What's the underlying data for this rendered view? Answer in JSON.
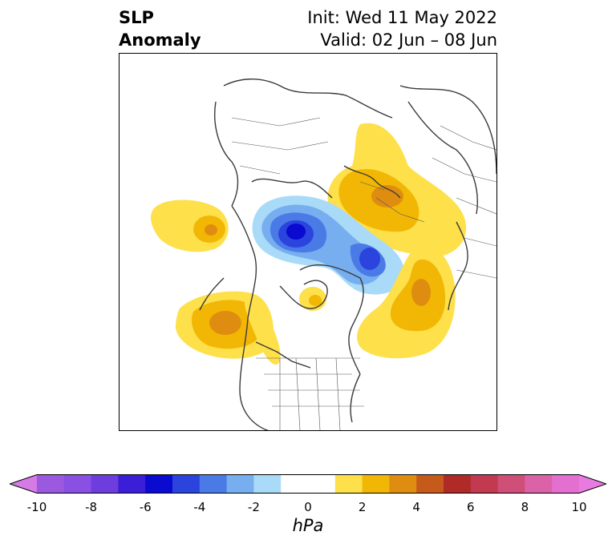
{
  "title": {
    "left_line1": "SLP",
    "left_line2": "Anomaly",
    "right_line1": "Init: Wed 11 May 2022",
    "right_line2": "Valid: 02 Jun – 08 Jun"
  },
  "colorbar": {
    "unit": "hPa",
    "ticks": [
      "-10",
      "-8",
      "-6",
      "-4",
      "-2",
      "0",
      "2",
      "4",
      "6",
      "8",
      "10"
    ],
    "tick_values": [
      -10,
      -8,
      -6,
      -4,
      -2,
      0,
      2,
      4,
      6,
      8,
      10
    ],
    "range": [
      -10,
      10
    ],
    "extend": "both",
    "bins": [
      {
        "from": -10,
        "to": -9,
        "color": "#9b59e0"
      },
      {
        "from": -9,
        "to": -8,
        "color": "#8a4fe3"
      },
      {
        "from": -8,
        "to": -7,
        "color": "#6e3ddd"
      },
      {
        "from": -7,
        "to": -6,
        "color": "#3b1fd8"
      },
      {
        "from": -6,
        "to": -5,
        "color": "#0a0ad0"
      },
      {
        "from": -5,
        "to": -4,
        "color": "#2a44dd"
      },
      {
        "from": -4,
        "to": -3,
        "color": "#4a7ae6"
      },
      {
        "from": -3,
        "to": -2,
        "color": "#76aef0"
      },
      {
        "from": -2,
        "to": -1,
        "color": "#a9daf8"
      },
      {
        "from": -1,
        "to": 1,
        "color": "#ffffff"
      },
      {
        "from": 1,
        "to": 2,
        "color": "#fde04a"
      },
      {
        "from": 2,
        "to": 3,
        "color": "#f2b705"
      },
      {
        "from": 3,
        "to": 4,
        "color": "#df8d10"
      },
      {
        "from": 4,
        "to": 5,
        "color": "#c65a1a"
      },
      {
        "from": 5,
        "to": 6,
        "color": "#b02a28"
      },
      {
        "from": 6,
        "to": 7,
        "color": "#c13a4f"
      },
      {
        "from": 7,
        "to": 8,
        "color": "#cf4f78"
      },
      {
        "from": 8,
        "to": 9,
        "color": "#dc62a8"
      },
      {
        "from": 9,
        "to": 10,
        "color": "#e36fd0"
      }
    ],
    "under_color": "#d67ae6",
    "over_color": "#e97be0"
  },
  "map": {
    "projection": "north-polar-stereographic",
    "variable": "sea-level-pressure-anomaly",
    "anomalies": [
      {
        "region": "north-central-siberia",
        "sign": "positive",
        "peak_hpa": 3
      },
      {
        "region": "arctic-ocean-near-beaufort",
        "sign": "negative",
        "peak_hpa": -5
      },
      {
        "region": "canadian-arctic-archipelago",
        "sign": "negative",
        "peak_hpa": -4
      },
      {
        "region": "north-atlantic-west-of-europe",
        "sign": "positive",
        "peak_hpa": 3
      },
      {
        "region": "northeast-pacific",
        "sign": "positive",
        "peak_hpa": 3
      },
      {
        "region": "hudson-bay",
        "sign": "positive",
        "peak_hpa": 2
      },
      {
        "region": "bering-sea-western-pacific",
        "sign": "positive",
        "peak_hpa": 2
      }
    ]
  }
}
